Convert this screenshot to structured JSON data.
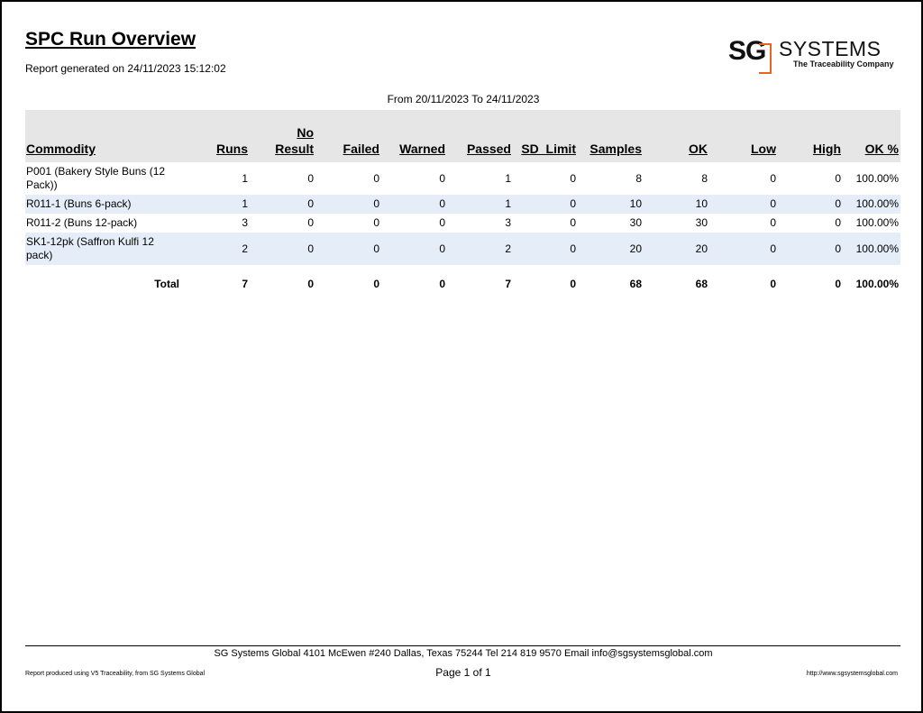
{
  "report": {
    "title": "SPC Run Overview",
    "generated": "Report generated on 24/11/2023 15:12:02",
    "date_range": "From 20/11/2023 To 24/11/2023"
  },
  "logo": {
    "sg": "SG",
    "systems": "SYSTEMS",
    "tagline": "The Traceability Company",
    "accent_color": "#e8651e"
  },
  "table": {
    "headers": [
      "Commodity",
      "Runs",
      "No Result",
      "Failed",
      "Warned",
      "Passed",
      "SD_Limit",
      "Samples",
      "OK",
      "Low",
      "High",
      "OK %"
    ],
    "header_no_result": [
      "No",
      "Result"
    ],
    "rows": [
      [
        "P001 (Bakery Style Buns (12 Pack))",
        "1",
        "0",
        "0",
        "0",
        "1",
        "0",
        "8",
        "8",
        "0",
        "0",
        "100.00%"
      ],
      [
        "R011-1 (Buns 6-pack)",
        "1",
        "0",
        "0",
        "0",
        "1",
        "0",
        "10",
        "10",
        "0",
        "0",
        "100.00%"
      ],
      [
        "R011-2 (Buns 12-pack)",
        "3",
        "0",
        "0",
        "0",
        "3",
        "0",
        "30",
        "30",
        "0",
        "0",
        "100.00%"
      ],
      [
        "SK1-12pk (Saffron Kulfi 12 pack)",
        "2",
        "0",
        "0",
        "0",
        "2",
        "0",
        "20",
        "20",
        "0",
        "0",
        "100.00%"
      ]
    ],
    "total": [
      "Total",
      "7",
      "0",
      "0",
      "0",
      "7",
      "0",
      "68",
      "68",
      "0",
      "0",
      "100.00%"
    ]
  },
  "footer": {
    "address": "SG Systems Global 4101 McEwen #240 Dallas, Texas 75244 Tel 214 819 9570 Email info@sgsystemsglobal.com",
    "produced_by": "Report produced using V5 Traceability, from SG Systems Global",
    "page": "Page 1 of 1",
    "url": "http://www.sgsystemsglobal.com"
  }
}
